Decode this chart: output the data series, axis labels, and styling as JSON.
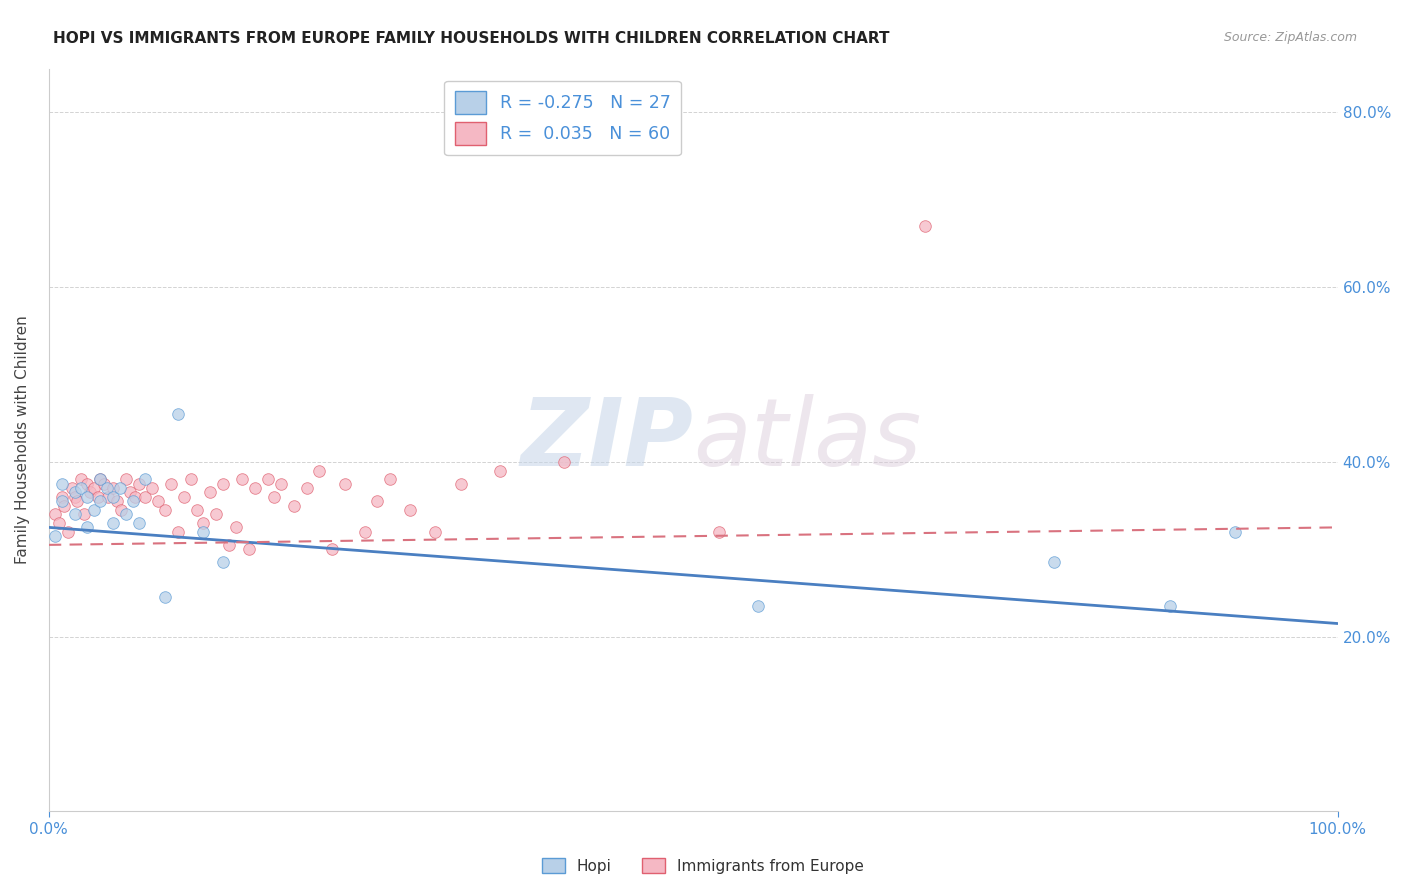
{
  "title": "HOPI VS IMMIGRANTS FROM EUROPE FAMILY HOUSEHOLDS WITH CHILDREN CORRELATION CHART",
  "source": "Source: ZipAtlas.com",
  "ylabel": "Family Households with Children",
  "legend_label1": "Hopi",
  "legend_label2": "Immigrants from Europe",
  "r1": -0.275,
  "n1": 27,
  "r2": 0.035,
  "n2": 60,
  "color_hopi_fill": "#b8d0e8",
  "color_hopi_edge": "#5b9bd5",
  "color_europe_fill": "#f5b8c4",
  "color_europe_edge": "#e06070",
  "color_hopi_line": "#4a7fc1",
  "color_europe_line": "#d9727f",
  "bg_color": "#ffffff",
  "grid_color": "#c8c8c8",
  "xlim": [
    0.0,
    1.0
  ],
  "ylim": [
    0.0,
    0.85
  ],
  "xtick_positions": [
    0.0,
    1.0
  ],
  "xticklabels": [
    "0.0%",
    "100.0%"
  ],
  "ytick_positions": [
    0.2,
    0.4,
    0.6,
    0.8
  ],
  "yticklabels_right": [
    "20.0%",
    "40.0%",
    "60.0%",
    "80.0%"
  ],
  "axis_color": "#4a90d9",
  "watermark_zip": "ZIP",
  "watermark_atlas": "atlas",
  "marker_size": 70,
  "marker_alpha": 0.75,
  "hopi_x": [
    0.005,
    0.01,
    0.01,
    0.02,
    0.02,
    0.025,
    0.03,
    0.03,
    0.035,
    0.04,
    0.04,
    0.045,
    0.05,
    0.05,
    0.055,
    0.06,
    0.065,
    0.07,
    0.075,
    0.09,
    0.1,
    0.12,
    0.135,
    0.55,
    0.78,
    0.87,
    0.92
  ],
  "hopi_y": [
    0.315,
    0.355,
    0.375,
    0.365,
    0.34,
    0.37,
    0.36,
    0.325,
    0.345,
    0.38,
    0.355,
    0.37,
    0.36,
    0.33,
    0.37,
    0.34,
    0.355,
    0.33,
    0.38,
    0.245,
    0.455,
    0.32,
    0.285,
    0.235,
    0.285,
    0.235,
    0.32
  ],
  "europe_x": [
    0.005,
    0.008,
    0.01,
    0.012,
    0.015,
    0.018,
    0.02,
    0.022,
    0.025,
    0.027,
    0.03,
    0.032,
    0.035,
    0.038,
    0.04,
    0.043,
    0.046,
    0.05,
    0.053,
    0.056,
    0.06,
    0.063,
    0.067,
    0.07,
    0.075,
    0.08,
    0.085,
    0.09,
    0.095,
    0.1,
    0.105,
    0.11,
    0.115,
    0.12,
    0.125,
    0.13,
    0.135,
    0.14,
    0.145,
    0.15,
    0.155,
    0.16,
    0.17,
    0.175,
    0.18,
    0.19,
    0.2,
    0.21,
    0.22,
    0.23,
    0.245,
    0.255,
    0.265,
    0.28,
    0.3,
    0.32,
    0.35,
    0.4,
    0.52,
    0.68
  ],
  "europe_y": [
    0.34,
    0.33,
    0.36,
    0.35,
    0.32,
    0.37,
    0.36,
    0.355,
    0.38,
    0.34,
    0.375,
    0.365,
    0.37,
    0.36,
    0.38,
    0.375,
    0.36,
    0.37,
    0.355,
    0.345,
    0.38,
    0.365,
    0.36,
    0.375,
    0.36,
    0.37,
    0.355,
    0.345,
    0.375,
    0.32,
    0.36,
    0.38,
    0.345,
    0.33,
    0.365,
    0.34,
    0.375,
    0.305,
    0.325,
    0.38,
    0.3,
    0.37,
    0.38,
    0.36,
    0.375,
    0.35,
    0.37,
    0.39,
    0.3,
    0.375,
    0.32,
    0.355,
    0.38,
    0.345,
    0.32,
    0.375,
    0.39,
    0.4,
    0.32,
    0.67
  ],
  "hopi_line_x0": 0.0,
  "hopi_line_y0": 0.325,
  "hopi_line_x1": 1.0,
  "hopi_line_y1": 0.215,
  "europe_line_x0": 0.0,
  "europe_line_y0": 0.305,
  "europe_line_x1": 1.0,
  "europe_line_y1": 0.325
}
